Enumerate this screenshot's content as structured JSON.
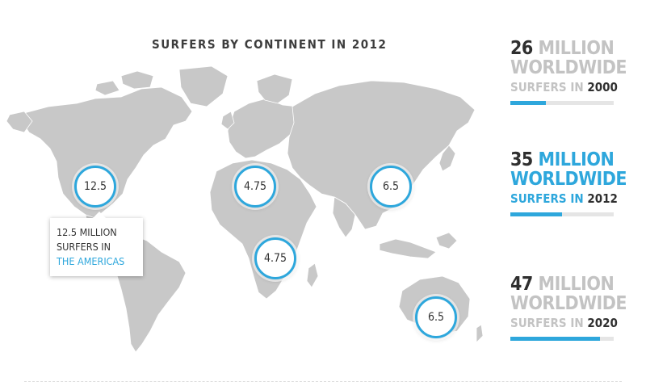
{
  "title": "SURFERS BY CONTINENT IN 2012",
  "map_color": "#c8c8c8",
  "accent_color": "#2ea7dc",
  "bubbles": [
    {
      "region": "americas",
      "value": "12.5"
    },
    {
      "region": "europe",
      "value": "4.75"
    },
    {
      "region": "africa",
      "value": "4.75"
    },
    {
      "region": "asia",
      "value": "6.5"
    },
    {
      "region": "oceania",
      "value": "6.5"
    }
  ],
  "callout": {
    "line1": "12.5 MILLION",
    "line2": "SURFERS IN",
    "line3": "THE AMERICAS"
  },
  "stats": [
    {
      "number": "26",
      "million": "MILLION",
      "worldwide": "WORLDWIDE",
      "surfers_in": "SURFERS IN",
      "year": "2000",
      "progress": 0.34
    },
    {
      "number": "35",
      "million": "MILLION",
      "worldwide": "WORLDWIDE",
      "surfers_in": "SURFERS IN",
      "year": "2012",
      "progress": 0.5
    },
    {
      "number": "47",
      "million": "MILLION",
      "worldwide": "WORLDWIDE",
      "surfers_in": "SURFERS IN",
      "year": "2020",
      "progress": 0.87
    }
  ]
}
